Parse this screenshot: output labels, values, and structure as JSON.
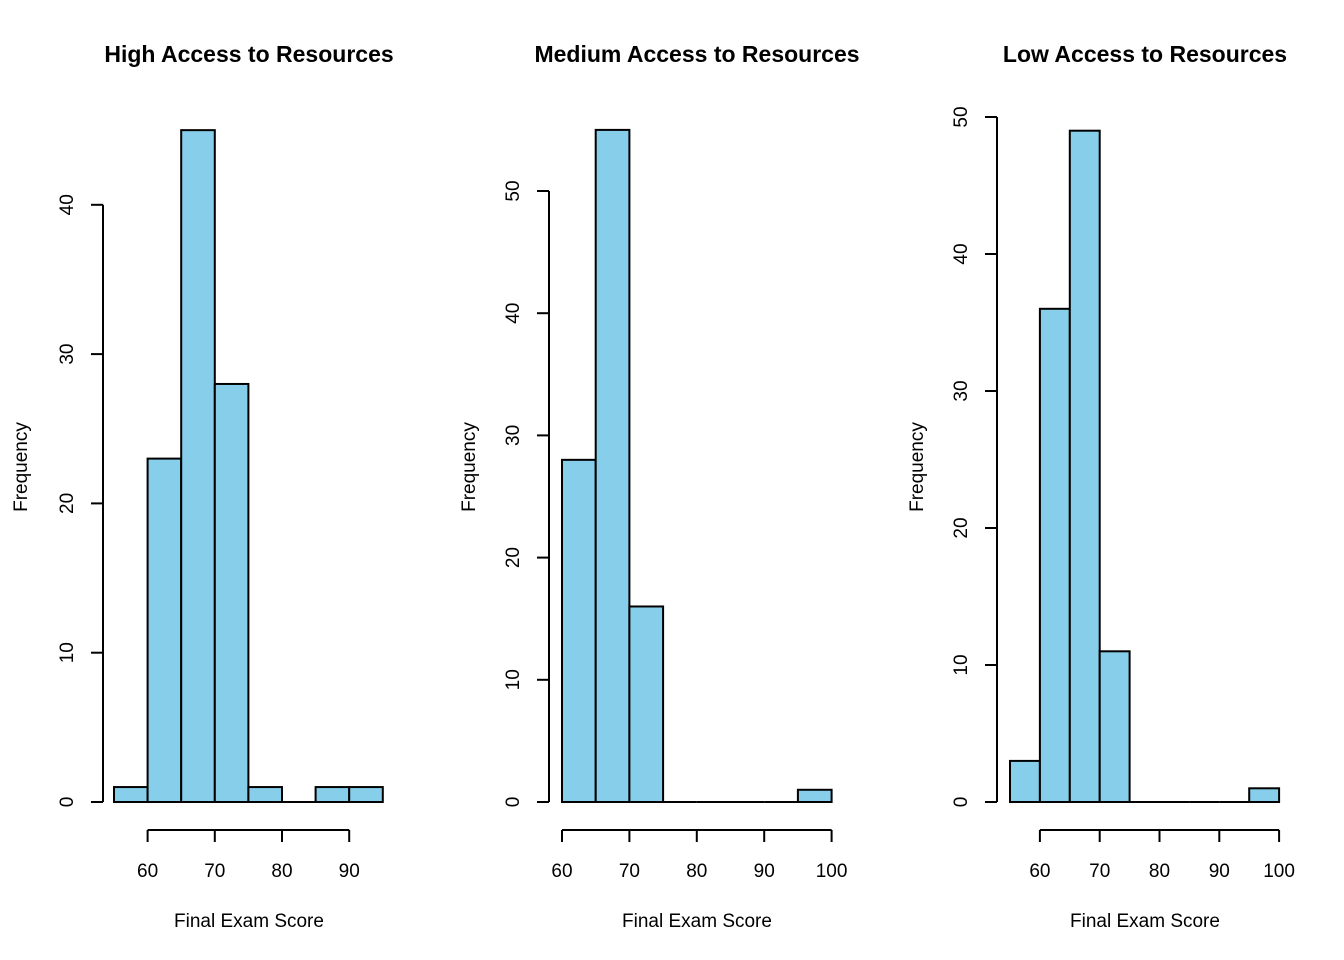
{
  "chart_data": [
    {
      "type": "bar",
      "title": "High Access to Resources",
      "xlabel": "Final Exam Score",
      "ylabel": "Frequency",
      "bar_color": "#87CEEB",
      "bin_edges": [
        55,
        60,
        65,
        70,
        75,
        80,
        85,
        90,
        95
      ],
      "values": [
        1,
        23,
        45,
        28,
        1,
        0,
        1,
        1
      ],
      "xticks": [
        60,
        70,
        80,
        90
      ],
      "yticks": [
        0,
        10,
        20,
        30,
        40
      ],
      "xlim": [
        55,
        95
      ],
      "ylim": [
        0,
        45
      ],
      "grid": false
    },
    {
      "type": "bar",
      "title": "Medium Access to Resources",
      "xlabel": "Final Exam Score",
      "ylabel": "Frequency",
      "bar_color": "#87CEEB",
      "bin_edges": [
        60,
        65,
        70,
        75,
        80,
        85,
        90,
        95,
        100
      ],
      "values": [
        28,
        55,
        16,
        0,
        0,
        0,
        0,
        1
      ],
      "xticks": [
        60,
        70,
        80,
        90,
        100
      ],
      "yticks": [
        0,
        10,
        20,
        30,
        40,
        50
      ],
      "xlim": [
        60,
        100
      ],
      "ylim": [
        0,
        55
      ],
      "grid": false
    },
    {
      "type": "bar",
      "title": "Low Access to Resources",
      "xlabel": "Final Exam Score",
      "ylabel": "Frequency",
      "bar_color": "#87CEEB",
      "bin_edges": [
        55,
        60,
        65,
        70,
        75,
        80,
        85,
        90,
        95,
        100
      ],
      "values": [
        3,
        36,
        49,
        11,
        0,
        0,
        0,
        0,
        1
      ],
      "xticks": [
        60,
        70,
        80,
        90,
        100
      ],
      "yticks": [
        0,
        10,
        20,
        30,
        40,
        50
      ],
      "xlim": [
        55,
        100
      ],
      "ylim": [
        0,
        50
      ],
      "grid": false
    }
  ]
}
